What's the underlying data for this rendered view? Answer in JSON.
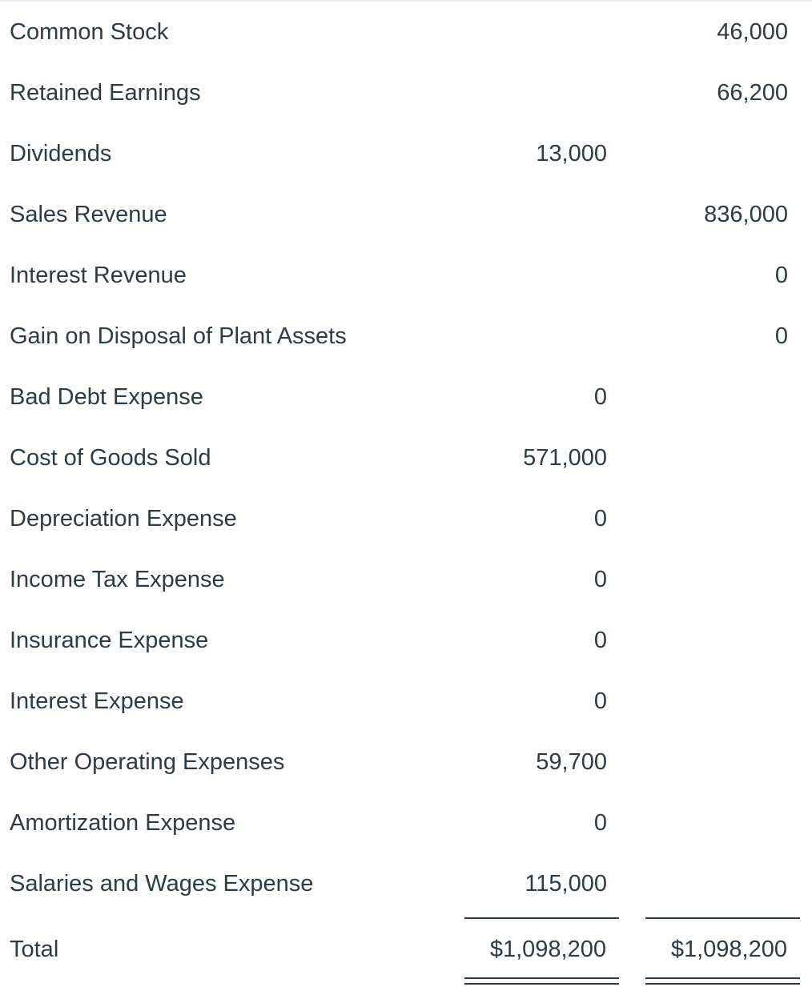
{
  "rows": [
    {
      "label": "Common Stock",
      "debit": "",
      "credit": "46,000"
    },
    {
      "label": "Retained Earnings",
      "debit": "",
      "credit": "66,200"
    },
    {
      "label": "Dividends",
      "debit": "13,000",
      "credit": ""
    },
    {
      "label": "Sales Revenue",
      "debit": "",
      "credit": "836,000"
    },
    {
      "label": "Interest Revenue",
      "debit": "",
      "credit": "0"
    },
    {
      "label": "Gain on Disposal of Plant Assets",
      "debit": "",
      "credit": "0"
    },
    {
      "label": "Bad Debt Expense",
      "debit": "0",
      "credit": ""
    },
    {
      "label": "Cost of Goods Sold",
      "debit": "571,000",
      "credit": ""
    },
    {
      "label": "Depreciation Expense",
      "debit": "0",
      "credit": ""
    },
    {
      "label": "Income Tax Expense",
      "debit": "0",
      "credit": ""
    },
    {
      "label": "Insurance Expense",
      "debit": "0",
      "credit": ""
    },
    {
      "label": "Interest Expense",
      "debit": "0",
      "credit": ""
    },
    {
      "label": "Other Operating Expenses",
      "debit": "59,700",
      "credit": ""
    },
    {
      "label": "Amortization Expense",
      "debit": "0",
      "credit": ""
    },
    {
      "label": "Salaries and Wages Expense",
      "debit": "115,000",
      "credit": ""
    }
  ],
  "total": {
    "label": "Total",
    "debit": "$1,098,200",
    "credit": "$1,098,200"
  }
}
